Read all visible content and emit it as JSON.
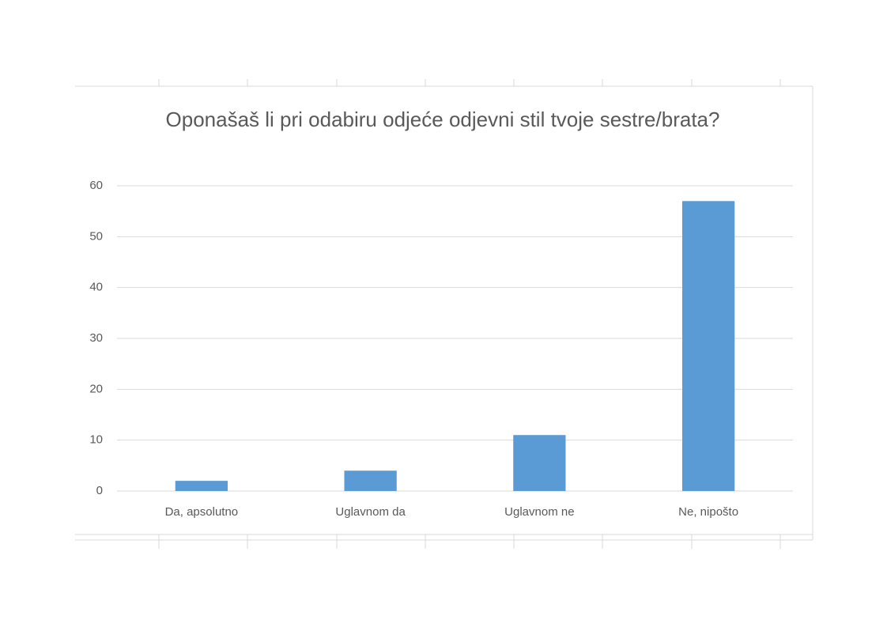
{
  "chart_data": {
    "type": "bar",
    "title": "Oponašaš li pri odabiru odjeće odjevni stil tvoje sestre/brata?",
    "categories": [
      "Da, apsolutno",
      "Uglavnom da",
      "Uglavnom ne",
      "Ne, nipošto"
    ],
    "values": [
      2,
      4,
      11,
      57
    ],
    "color": "#5b9bd5",
    "ylim": [
      0,
      60
    ],
    "yticks": [
      0,
      10,
      20,
      30,
      40,
      50,
      60
    ],
    "grid": true
  }
}
